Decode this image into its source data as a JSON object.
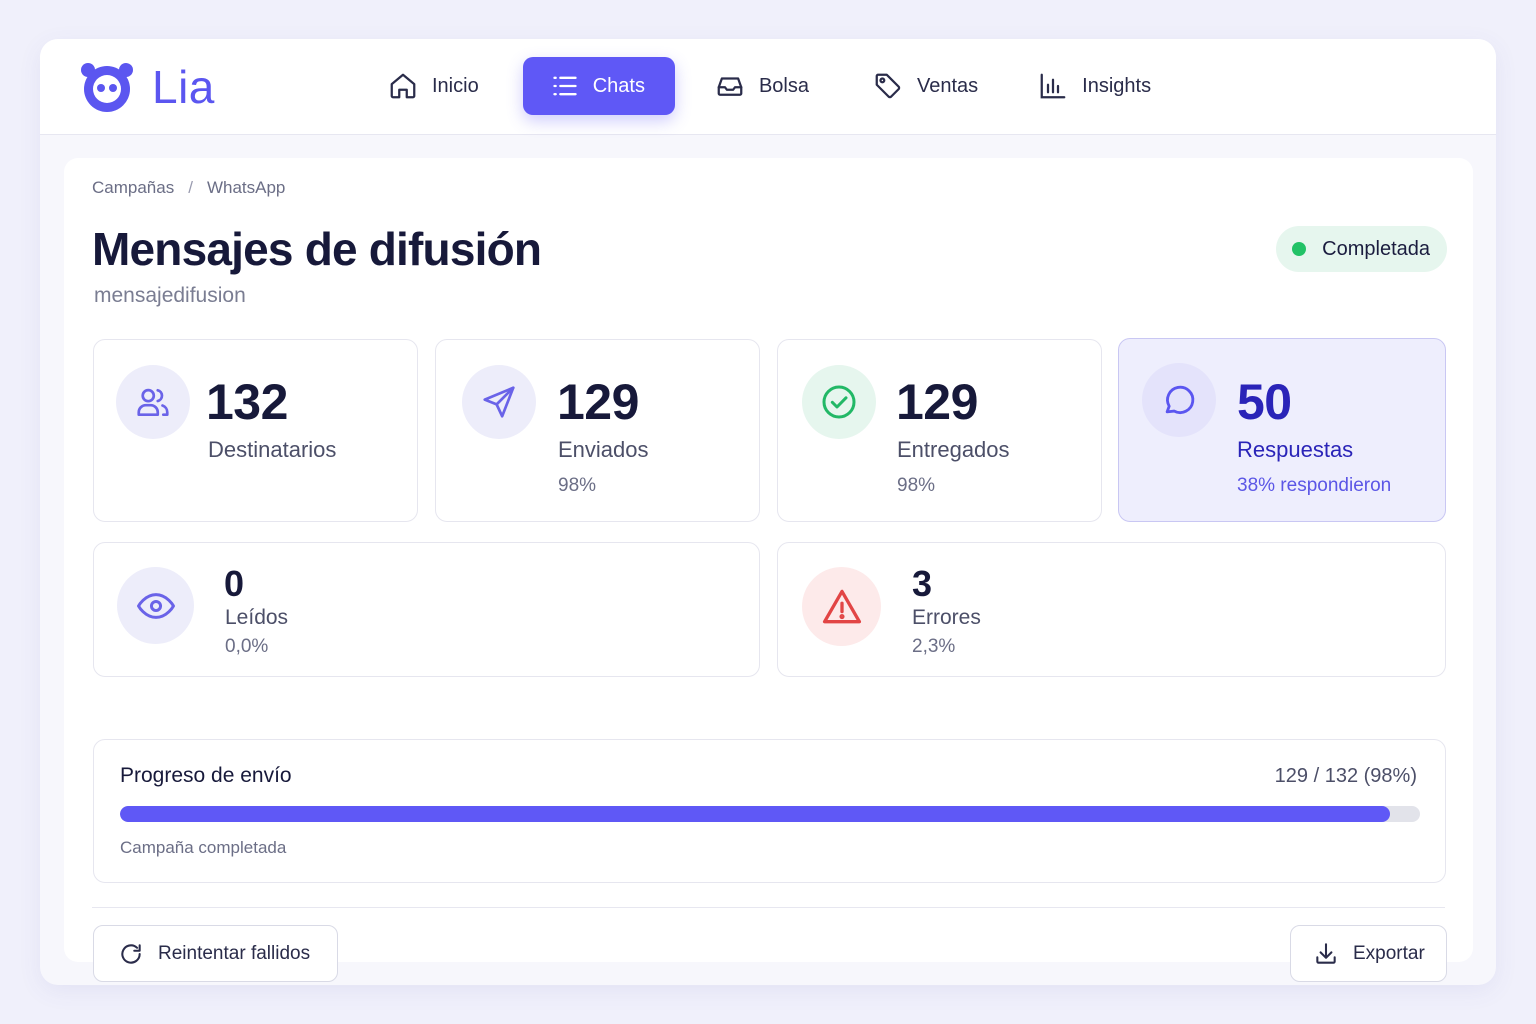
{
  "app": {
    "name": "Lia",
    "brand_color": "#5b56f0"
  },
  "nav": {
    "items": [
      {
        "label": "Inicio",
        "icon": "home-icon"
      },
      {
        "label": "Chats",
        "icon": "list-icon",
        "active": true
      },
      {
        "label": "Bolsa",
        "icon": "inbox-icon"
      },
      {
        "label": "Ventas",
        "icon": "tag-icon"
      },
      {
        "label": "Insights",
        "icon": "bar-chart-icon"
      }
    ]
  },
  "breadcrumb": {
    "items": [
      "Campañas",
      "WhatsApp"
    ],
    "separator": "/"
  },
  "page": {
    "title": "Mensajes de difusión",
    "subtitle": "mensajedifusion",
    "status": {
      "label": "Completada",
      "color": "#22c266"
    }
  },
  "stats": {
    "recipients": {
      "value": "132",
      "label": "Destinatarios",
      "icon": "users-icon"
    },
    "sent": {
      "value": "129",
      "label": "Enviados",
      "sub": "98%",
      "icon": "send-icon"
    },
    "delivered": {
      "value": "129",
      "label": "Entregados",
      "sub": "98%",
      "icon": "check-circle-icon"
    },
    "responses": {
      "value": "50",
      "label": "Respuestas",
      "sub": "38% respondieron",
      "icon": "chat-bubble-icon"
    },
    "read": {
      "value": "0",
      "label": "Leídos",
      "sub": "0,0%",
      "icon": "eye-icon"
    },
    "errors": {
      "value": "3",
      "label": "Errores",
      "sub": "2,3%",
      "icon": "warning-icon"
    }
  },
  "progress": {
    "title": "Progreso de envío",
    "count": "129 / 132 (98%)",
    "fraction": 0.977,
    "note": "Campaña completada",
    "color": "#5f58f6"
  },
  "actions": {
    "retry_label": "Reintentar fallidos",
    "export_label": "Exportar"
  }
}
